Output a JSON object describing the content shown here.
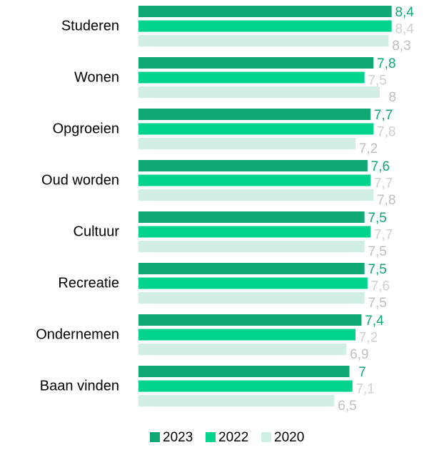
{
  "chart_data": {
    "type": "barh",
    "categories": [
      "Studeren",
      "Wonen",
      "Opgroeien",
      "Oud worden",
      "Cultuur",
      "Recreatie",
      "Ondernemen",
      "Baan vinden"
    ],
    "xlim": [
      0,
      9
    ],
    "legend": "bottom",
    "series": [
      {
        "name": "2023",
        "color": "#10a874",
        "label_color": "#10a874",
        "values": [
          8.4,
          7.8,
          7.7,
          7.6,
          7.5,
          7.5,
          7.4,
          7
        ],
        "value_labels": [
          "8,4",
          "7,8",
          "7,7",
          "7,6",
          "7,5",
          "7,5",
          "7,4",
          "7"
        ]
      },
      {
        "name": "2022",
        "color": "#00d48c",
        "label_color": "#d0d0d0",
        "values": [
          8.4,
          7.5,
          7.8,
          7.7,
          7.7,
          7.6,
          7.2,
          7.1
        ],
        "value_labels": [
          "8,4",
          "7,5",
          "7,8",
          "7,7",
          "7,7",
          "7,6",
          "7,2",
          "7,1"
        ]
      },
      {
        "name": "2020",
        "color": "#d2efe3",
        "label_color": "#c0c0c0",
        "values": [
          8.3,
          8,
          7.2,
          7.8,
          7.5,
          7.5,
          6.9,
          6.5
        ],
        "value_labels": [
          "8,3",
          "8",
          "7,2",
          "7,8",
          "7,5",
          "7,5",
          "6,9",
          "6,5"
        ]
      }
    ]
  }
}
